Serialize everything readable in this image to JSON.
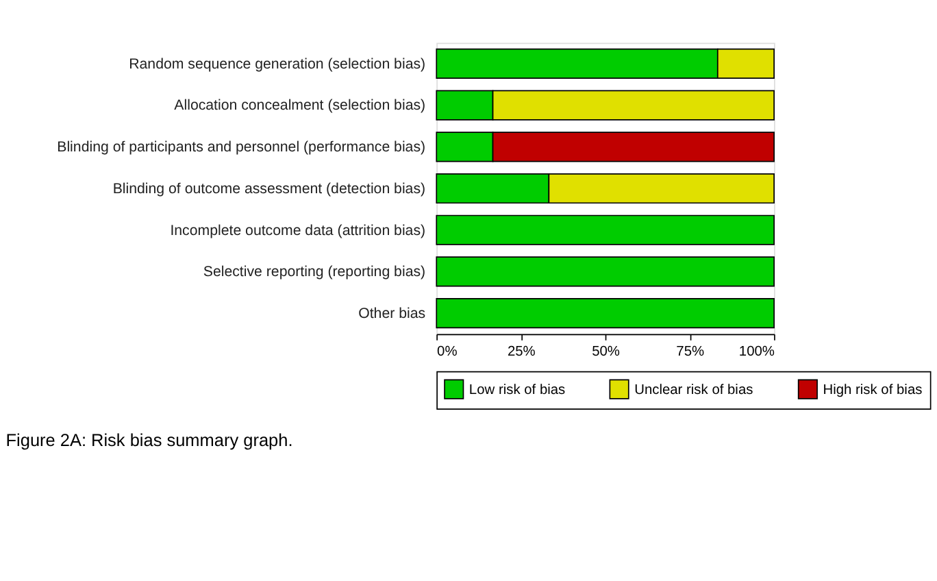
{
  "chart_data": {
    "type": "bar",
    "orientation": "horizontal",
    "stacked": true,
    "categories": [
      "Random sequence generation (selection bias)",
      "Allocation concealment (selection bias)",
      "Blinding of participants and personnel (performance bias)",
      "Blinding of outcome assessment (detection bias)",
      "Incomplete outcome data (attrition bias)",
      "Selective reporting (reporting bias)",
      "Other bias"
    ],
    "series": [
      {
        "name": "Low risk of bias",
        "color": "#00cc00",
        "values": [
          83.3,
          16.7,
          16.7,
          33.3,
          100,
          100,
          100
        ]
      },
      {
        "name": "Unclear risk of bias",
        "color": "#e0e000",
        "values": [
          16.7,
          83.3,
          null,
          66.7,
          null,
          null,
          null
        ]
      },
      {
        "name": "High risk of bias",
        "color": "#c00000",
        "values": [
          null,
          null,
          83.3,
          null,
          null,
          null,
          null
        ]
      }
    ],
    "xlim": [
      0,
      100
    ],
    "xticks": [
      {
        "value": 0,
        "label": "0%"
      },
      {
        "value": 25,
        "label": "25%"
      },
      {
        "value": 50,
        "label": "50%"
      },
      {
        "value": 75,
        "label": "75%"
      },
      {
        "value": 100,
        "label": "100%"
      }
    ],
    "legend": "bottom",
    "grid": false,
    "annotations": [
      "Figure 2A: Risk bias summary graph."
    ]
  }
}
